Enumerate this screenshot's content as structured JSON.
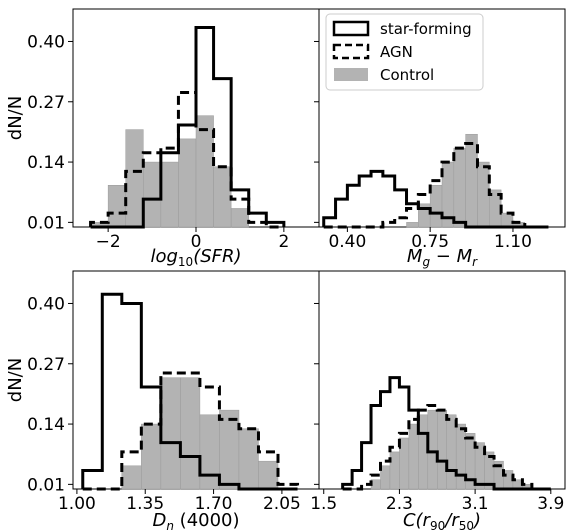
{
  "figure": {
    "ylabel": "dN/N",
    "yticks": [
      "0.40",
      "0.27",
      "0.14",
      "0.01"
    ],
    "colors": {
      "star_forming": "#000000",
      "agn": "#000000",
      "control": "#b3b3b3"
    }
  },
  "legend": {
    "location": "top-right panel, upper-left",
    "entries": [
      {
        "label": "star-forming",
        "style": "solid outline"
      },
      {
        "label": "AGN",
        "style": "dashed outline"
      },
      {
        "label": "Control",
        "style": "filled grey"
      }
    ]
  },
  "chart_data": [
    {
      "type": "bar",
      "panel": "top-left",
      "xlabel": "log10(SFR)",
      "xlim": [
        -2.8,
        2.8
      ],
      "ylim": [
        0.0,
        0.47
      ],
      "xticks": [
        -2,
        0,
        2
      ],
      "xtick_labels": [
        "−2",
        "0",
        "2"
      ],
      "bins": [
        -2.4,
        -2.0,
        -1.6,
        -1.2,
        -0.8,
        -0.4,
        0.0,
        0.4,
        0.8,
        1.2,
        1.6
      ],
      "series": [
        {
          "name": "star-forming",
          "style": "step",
          "values": [
            0.0,
            0.0,
            0.0,
            0.06,
            0.16,
            0.22,
            0.43,
            0.32,
            0.08,
            0.03,
            0.01
          ]
        },
        {
          "name": "AGN",
          "style": "dashed-step",
          "values": [
            0.01,
            0.03,
            0.12,
            0.16,
            0.17,
            0.29,
            0.21,
            0.13,
            0.06,
            0.01,
            0.0
          ]
        },
        {
          "name": "Control",
          "style": "filled",
          "values": [
            0.01,
            0.09,
            0.21,
            0.14,
            0.14,
            0.19,
            0.24,
            0.13,
            0.04,
            0.0,
            0.0
          ]
        }
      ]
    },
    {
      "type": "bar",
      "panel": "top-right",
      "xlabel": "Mg − Mr",
      "xlim": [
        0.28,
        1.32
      ],
      "ylim": [
        0.0,
        0.47
      ],
      "xticks": [
        0.4,
        0.75,
        1.1
      ],
      "xtick_labels": [
        "0.40",
        "0.75",
        "1.10"
      ],
      "bins": [
        0.3,
        0.35,
        0.4,
        0.45,
        0.5,
        0.55,
        0.6,
        0.65,
        0.7,
        0.75,
        0.8,
        0.85,
        0.9,
        0.95,
        1.0,
        1.05,
        1.1,
        1.15,
        1.2
      ],
      "series": [
        {
          "name": "star-forming",
          "style": "step",
          "values": [
            0.02,
            0.06,
            0.09,
            0.11,
            0.12,
            0.11,
            0.08,
            0.05,
            0.04,
            0.03,
            0.02,
            0.01,
            0.0,
            0.0,
            0.0,
            0.0,
            0.0,
            0.0,
            0.0
          ]
        },
        {
          "name": "AGN",
          "style": "dashed-step",
          "values": [
            0.0,
            0.0,
            0.0,
            0.0,
            0.0,
            0.01,
            0.02,
            0.04,
            0.07,
            0.1,
            0.14,
            0.17,
            0.18,
            0.13,
            0.07,
            0.03,
            0.01,
            0.0,
            0.0
          ]
        },
        {
          "name": "Control",
          "style": "filled",
          "values": [
            0.0,
            0.0,
            0.0,
            0.0,
            0.0,
            0.0,
            0.0,
            0.01,
            0.05,
            0.09,
            0.14,
            0.17,
            0.2,
            0.14,
            0.08,
            0.03,
            0.01,
            0.0,
            0.0
          ]
        }
      ]
    },
    {
      "type": "bar",
      "panel": "bottom-left",
      "xlabel": "Dn (4000)",
      "xlim": [
        0.98,
        2.24
      ],
      "ylim": [
        0.0,
        0.47
      ],
      "xticks": [
        1.0,
        1.35,
        1.7,
        2.05
      ],
      "xtick_labels": [
        "1.00",
        "1.35",
        "1.70",
        "2.05"
      ],
      "bins": [
        1.03,
        1.13,
        1.23,
        1.33,
        1.43,
        1.53,
        1.63,
        1.73,
        1.83,
        1.93,
        2.03
      ],
      "series": [
        {
          "name": "star-forming",
          "style": "step",
          "values": [
            0.04,
            0.42,
            0.4,
            0.22,
            0.1,
            0.07,
            0.03,
            0.01,
            0.0,
            0.0,
            0.0
          ]
        },
        {
          "name": "AGN",
          "style": "dashed-step",
          "values": [
            0.0,
            0.0,
            0.08,
            0.14,
            0.25,
            0.25,
            0.22,
            0.15,
            0.13,
            0.08,
            0.01
          ]
        },
        {
          "name": "Control",
          "style": "filled",
          "values": [
            0.0,
            0.0,
            0.05,
            0.14,
            0.24,
            0.24,
            0.16,
            0.17,
            0.13,
            0.06,
            0.0
          ]
        }
      ]
    },
    {
      "type": "bar",
      "panel": "bottom-right",
      "xlabel": "C(r90/r50)",
      "xlim": [
        1.45,
        4.05
      ],
      "ylim": [
        0.0,
        0.47
      ],
      "xticks": [
        1.5,
        2.3,
        3.1,
        3.9
      ],
      "xtick_labels": [
        "1.5",
        "2.3",
        "3.1",
        "3.9"
      ],
      "bins": [
        1.7,
        1.8,
        1.9,
        2.0,
        2.1,
        2.2,
        2.3,
        2.4,
        2.5,
        2.6,
        2.7,
        2.8,
        2.9,
        3.0,
        3.1,
        3.2,
        3.3,
        3.4,
        3.5,
        3.6,
        3.7,
        3.8
      ],
      "series": [
        {
          "name": "star-forming",
          "style": "step",
          "values": [
            0.01,
            0.04,
            0.1,
            0.18,
            0.21,
            0.24,
            0.22,
            0.17,
            0.12,
            0.08,
            0.06,
            0.04,
            0.03,
            0.02,
            0.01,
            0.01,
            0.0,
            0.0,
            0.0,
            0.0,
            0.0,
            0.0
          ]
        },
        {
          "name": "AGN",
          "style": "dashed-step",
          "values": [
            0.0,
            0.0,
            0.01,
            0.03,
            0.06,
            0.09,
            0.12,
            0.15,
            0.17,
            0.18,
            0.17,
            0.15,
            0.13,
            0.11,
            0.09,
            0.07,
            0.05,
            0.03,
            0.02,
            0.01,
            0.0,
            0.0
          ]
        },
        {
          "name": "Control",
          "style": "filled",
          "values": [
            0.0,
            0.0,
            0.0,
            0.02,
            0.05,
            0.08,
            0.11,
            0.14,
            0.16,
            0.17,
            0.17,
            0.16,
            0.14,
            0.12,
            0.1,
            0.08,
            0.06,
            0.04,
            0.02,
            0.01,
            0.0,
            0.0
          ]
        }
      ]
    }
  ]
}
